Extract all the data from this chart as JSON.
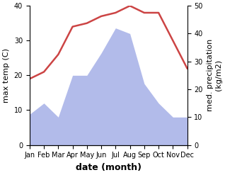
{
  "months": [
    "Jan",
    "Feb",
    "Mar",
    "Apr",
    "May",
    "Jun",
    "Jul",
    "Aug",
    "Sep",
    "Oct",
    "Nov",
    "Dec"
  ],
  "month_indices": [
    0,
    1,
    2,
    3,
    4,
    5,
    6,
    7,
    8,
    9,
    10,
    11
  ],
  "temperature": [
    19,
    21,
    26,
    34,
    35,
    37,
    38,
    40,
    38,
    38,
    30,
    22
  ],
  "precipitation": [
    11,
    15,
    10,
    25,
    25,
    33,
    42,
    40,
    22,
    15,
    10,
    10
  ],
  "temp_color": "#cc4444",
  "precip_color": "#aab4e8",
  "ylabel_left": "max temp (C)",
  "ylabel_right": "med. precipitation\n(kg/m2)",
  "xlabel": "date (month)",
  "ylim_left": [
    0,
    40
  ],
  "ylim_right": [
    0,
    50
  ],
  "yticks_left": [
    0,
    10,
    20,
    30,
    40
  ],
  "yticks_right": [
    0,
    10,
    20,
    30,
    40,
    50
  ],
  "background_color": "#ffffff",
  "temp_linewidth": 1.8,
  "xlabel_fontsize": 9,
  "ylabel_fontsize": 8,
  "tick_fontsize": 7
}
